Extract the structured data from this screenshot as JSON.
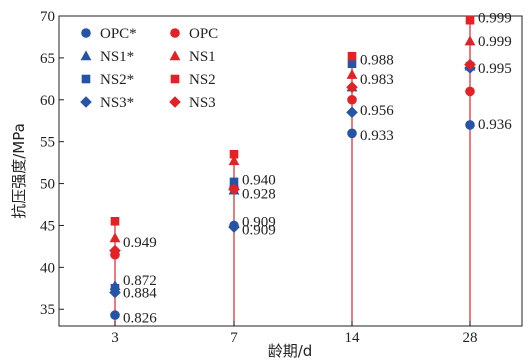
{
  "chart_data": {
    "type": "scatter",
    "xlabel": "龄期/d",
    "ylabel": "抗压强度/MPa",
    "categories": [
      "3",
      "7",
      "14",
      "28"
    ],
    "ylim": [
      33,
      70
    ],
    "yticks": [
      35,
      40,
      45,
      50,
      55,
      60,
      65,
      70
    ],
    "colors": {
      "model": "#2554a6",
      "measured": "#e32227"
    },
    "legend": [
      {
        "label": "OPC*",
        "marker": "circle",
        "color": "#2554a6"
      },
      {
        "label": "OPC",
        "marker": "circle",
        "color": "#e32227"
      },
      {
        "label": "NS1*",
        "marker": "triangle",
        "color": "#2554a6"
      },
      {
        "label": "NS1",
        "marker": "triangle",
        "color": "#e32227"
      },
      {
        "label": "NS2*",
        "marker": "square",
        "color": "#2554a6"
      },
      {
        "label": "NS2",
        "marker": "square",
        "color": "#e32227"
      },
      {
        "label": "NS3*",
        "marker": "diamond",
        "color": "#2554a6"
      },
      {
        "label": "NS3",
        "marker": "diamond",
        "color": "#e32227"
      }
    ],
    "series": [
      {
        "name": "OPC*",
        "marker": "circle",
        "color": "#2554a6",
        "values": [
          34.3,
          45.0,
          56.0,
          57.0
        ]
      },
      {
        "name": "OPC",
        "marker": "circle",
        "color": "#e32227",
        "values": [
          41.5,
          49.5,
          60.0,
          61.0
        ]
      },
      {
        "name": "NS1*",
        "marker": "triangle",
        "color": "#2554a6",
        "values": [
          37.8,
          49.2,
          61.5,
          64.0
        ]
      },
      {
        "name": "NS1",
        "marker": "triangle",
        "color": "#e32227",
        "values": [
          43.5,
          52.7,
          63.0,
          67.0
        ]
      },
      {
        "name": "NS2*",
        "marker": "square",
        "color": "#2554a6",
        "values": [
          37.5,
          50.2,
          64.3,
          64.0
        ]
      },
      {
        "name": "NS2",
        "marker": "square",
        "color": "#e32227",
        "values": [
          45.5,
          53.5,
          65.2,
          69.5
        ]
      },
      {
        "name": "NS3*",
        "marker": "diamond",
        "color": "#2554a6",
        "values": [
          37.0,
          44.8,
          58.5,
          63.8
        ]
      },
      {
        "name": "NS3",
        "marker": "diamond",
        "color": "#e32227",
        "values": [
          42.0,
          49.3,
          61.5,
          64.2
        ]
      }
    ],
    "annotations": [
      {
        "x": "3",
        "text": "0.949"
      },
      {
        "x": "3",
        "text": "0.872"
      },
      {
        "x": "3",
        "text": "0.884"
      },
      {
        "x": "3",
        "text": "0.826"
      },
      {
        "x": "7",
        "text": "0.940"
      },
      {
        "x": "7",
        "text": "0.928"
      },
      {
        "x": "7",
        "text": "0.909"
      },
      {
        "x": "7",
        "text": "0.909"
      },
      {
        "x": "14",
        "text": "0.988"
      },
      {
        "x": "14",
        "text": "0.983"
      },
      {
        "x": "14",
        "text": "0.956"
      },
      {
        "x": "14",
        "text": "0.933"
      },
      {
        "x": "28",
        "text": "0.999"
      },
      {
        "x": "28",
        "text": "0.999"
      },
      {
        "x": "28",
        "text": "0.995"
      },
      {
        "x": "28",
        "text": "0.936"
      }
    ]
  }
}
